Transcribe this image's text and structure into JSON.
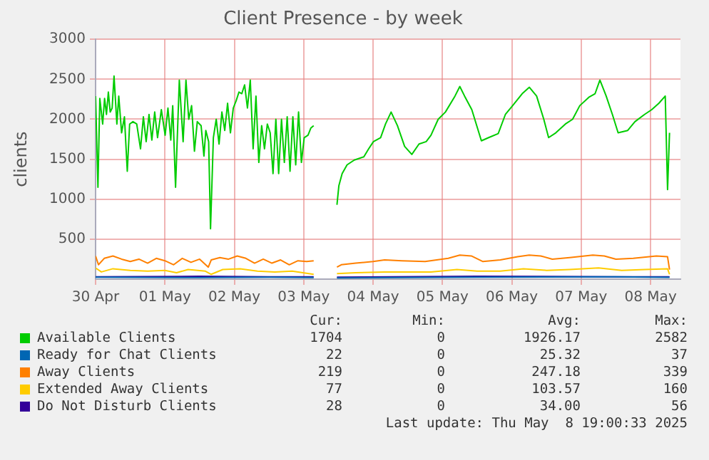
{
  "chart_data": {
    "type": "line",
    "title": "Client Presence - by week",
    "ylabel": "clients",
    "xlim": [
      "2025-04-30T00:00",
      "2025-05-08T10:20"
    ],
    "xticks": [
      {
        "value": "2025-04-30",
        "label": "30 Apr"
      },
      {
        "value": "2025-05-01",
        "label": "01 May"
      },
      {
        "value": "2025-05-02",
        "label": "02 May"
      },
      {
        "value": "2025-05-03",
        "label": "03 May"
      },
      {
        "value": "2025-05-04",
        "label": "04 May"
      },
      {
        "value": "2025-05-05",
        "label": "05 May"
      },
      {
        "value": "2025-05-06",
        "label": "06 May"
      },
      {
        "value": "2025-05-07",
        "label": "07 May"
      },
      {
        "value": "2025-05-08",
        "label": "08 May"
      }
    ],
    "ylim": [
      0,
      3000
    ],
    "yticks": [
      500,
      1000,
      1500,
      2000,
      2500,
      3000
    ],
    "grid": true,
    "legend": "bottom",
    "series": [
      {
        "name": "Available Clients",
        "color": "#00cc00",
        "x": [
          "2025-04-30T00:00",
          "2025-04-30T00:49",
          "2025-04-30T01:28",
          "2025-04-30T02:27",
          "2025-04-30T03:07",
          "2025-04-30T03:46",
          "2025-04-30T04:25",
          "2025-04-30T05:04",
          "2025-04-30T05:44",
          "2025-04-30T06:23",
          "2025-04-30T07:22",
          "2025-04-30T08:01",
          "2025-04-30T09:00",
          "2025-04-30T09:59",
          "2025-04-30T10:58",
          "2025-04-30T11:47",
          "2025-04-30T12:56",
          "2025-04-30T14:14",
          "2025-04-30T15:33",
          "2025-04-30T16:32",
          "2025-04-30T17:30",
          "2025-04-30T18:29",
          "2025-04-30T19:28",
          "2025-04-30T20:27",
          "2025-04-30T21:26",
          "2025-04-30T22:45",
          "2025-05-01T00:04",
          "2025-05-01T01:02",
          "2025-05-01T02:01",
          "2025-05-01T02:41",
          "2025-05-01T03:40",
          "2025-05-01T04:58",
          "2025-05-01T06:17",
          "2025-05-01T07:16",
          "2025-05-01T08:14",
          "2025-05-01T09:13",
          "2025-05-01T10:12",
          "2025-05-01T11:11",
          "2025-05-01T12:30",
          "2025-05-01T13:29",
          "2025-05-01T14:08",
          "2025-05-01T15:07",
          "2025-05-01T15:46",
          "2025-05-01T16:45",
          "2025-05-01T17:44",
          "2025-05-01T18:43",
          "2025-05-01T19:42",
          "2025-05-01T20:41",
          "2025-05-01T21:40",
          "2025-05-01T22:39",
          "2025-05-01T23:38",
          "2025-05-02T00:37",
          "2025-05-02T01:36",
          "2025-05-02T02:35",
          "2025-05-02T03:33",
          "2025-05-02T04:32",
          "2025-05-02T05:31",
          "2025-05-02T06:30",
          "2025-05-02T07:29",
          "2025-05-02T08:28",
          "2025-05-02T09:27",
          "2025-05-02T10:26",
          "2025-05-02T11:25",
          "2025-05-02T12:24",
          "2025-05-02T13:23",
          "2025-05-02T14:22",
          "2025-05-02T15:20",
          "2025-05-02T16:19",
          "2025-05-02T17:18",
          "2025-05-02T18:17",
          "2025-05-02T19:16",
          "2025-05-02T20:15",
          "2025-05-02T21:14",
          "2025-05-02T22:13",
          "2025-05-02T23:12",
          "2025-05-03T00:10",
          "2025-05-03T01:29",
          "2025-05-03T02:28",
          "2025-05-03T03:27",
          "2025-05-03T07:00",
          "2025-05-03T11:30",
          "2025-05-03T12:10",
          "2025-05-03T13:18",
          "2025-05-03T15:00",
          "2025-05-03T17:30",
          "2025-05-03T20:48",
          "2025-05-03T22:28",
          "2025-05-04T00:07",
          "2025-05-04T02:36",
          "2025-05-04T04:18",
          "2025-05-04T06:14",
          "2025-05-04T08:25",
          "2025-05-04T10:55",
          "2025-05-04T13:24",
          "2025-05-04T15:53",
          "2025-05-04T18:22",
          "2025-05-04T20:02",
          "2025-05-04T22:31",
          "2025-05-05T01:01",
          "2025-05-05T04:20",
          "2025-05-05T06:00",
          "2025-05-05T07:39",
          "2025-05-05T10:09",
          "2025-05-05T13:28",
          "2025-05-05T15:58",
          "2025-05-05T19:17",
          "2025-05-05T21:46",
          "2025-05-06T00:16",
          "2025-05-06T03:35",
          "2025-05-06T06:04",
          "2025-05-06T08:34",
          "2025-05-06T11:03",
          "2025-05-06T12:43",
          "2025-05-06T15:12",
          "2025-05-06T18:31",
          "2025-05-06T21:01",
          "2025-05-06T23:30",
          "2025-05-07T02:49",
          "2025-05-07T04:48",
          "2025-05-07T06:28",
          "2025-05-07T08:38",
          "2025-05-07T10:47",
          "2025-05-07T12:46",
          "2025-05-07T16:05",
          "2025-05-07T18:35",
          "2025-05-07T21:54",
          "2025-05-08T00:23",
          "2025-05-08T02:52",
          "2025-05-08T05:04",
          "2025-05-08T05:52",
          "2025-05-08T06:33"
        ],
        "values": [
          2290,
          1150,
          2260,
          1940,
          2260,
          2060,
          2340,
          2090,
          2140,
          2540,
          1940,
          2290,
          1830,
          2030,
          1350,
          1940,
          1970,
          1940,
          1630,
          2030,
          1720,
          2060,
          1740,
          2090,
          1770,
          2120,
          1800,
          2140,
          1740,
          2170,
          1150,
          2490,
          1720,
          2490,
          2000,
          2170,
          1600,
          1970,
          1920,
          1540,
          1860,
          1720,
          630,
          1770,
          2000,
          1690,
          2090,
          1860,
          2200,
          1830,
          2140,
          2230,
          2340,
          2320,
          2430,
          2140,
          2490,
          1630,
          2290,
          1460,
          1920,
          1630,
          1940,
          1830,
          1320,
          2000,
          1320,
          2000,
          1460,
          2030,
          1350,
          2030,
          1430,
          2090,
          1460,
          1770,
          1800,
          1890,
          1920,
          null,
          930,
          1170,
          1320,
          1430,
          1490,
          1530,
          1630,
          1720,
          1770,
          1940,
          2090,
          1920,
          1660,
          1560,
          1690,
          1720,
          1800,
          2000,
          2090,
          2290,
          2410,
          2290,
          2120,
          1730,
          1770,
          1820,
          2060,
          2170,
          2320,
          2400,
          2290,
          2000,
          1770,
          1830,
          1940,
          2000,
          2170,
          2280,
          2320,
          2490,
          2290,
          2060,
          1830,
          1860,
          1970,
          2060,
          2120,
          2200,
          2290,
          1120,
          1830
        ]
      },
      {
        "name": "Ready for Chat Clients",
        "color": "#0066b3",
        "x": [
          "2025-04-30T00:00",
          "2025-05-01T12:00",
          "2025-05-02T12:00",
          "2025-05-03T03:27",
          "2025-05-03T07:00",
          "2025-05-03T11:30",
          "2025-05-05T12:00",
          "2025-05-07T12:00",
          "2025-05-08T06:33"
        ],
        "values": [
          25,
          20,
          25,
          20,
          null,
          15,
          25,
          30,
          22
        ]
      },
      {
        "name": "Away Clients",
        "color": "#ff8000",
        "x": [
          "2025-04-30T00:00",
          "2025-04-30T01:00",
          "2025-04-30T03:00",
          "2025-04-30T06:00",
          "2025-04-30T09:00",
          "2025-04-30T12:00",
          "2025-04-30T15:00",
          "2025-04-30T18:00",
          "2025-04-30T21:00",
          "2025-05-01T00:00",
          "2025-05-01T03:00",
          "2025-05-01T06:00",
          "2025-05-01T09:00",
          "2025-05-01T12:00",
          "2025-05-01T15:00",
          "2025-05-01T16:00",
          "2025-05-01T19:00",
          "2025-05-01T22:00",
          "2025-05-02T01:00",
          "2025-05-02T04:00",
          "2025-05-02T07:00",
          "2025-05-02T10:00",
          "2025-05-02T13:00",
          "2025-05-02T16:00",
          "2025-05-02T19:00",
          "2025-05-02T22:00",
          "2025-05-03T01:00",
          "2025-05-03T03:27",
          "2025-05-03T07:00",
          "2025-05-03T11:30",
          "2025-05-03T13:00",
          "2025-05-03T18:00",
          "2025-05-04T00:00",
          "2025-05-04T04:00",
          "2025-05-04T10:00",
          "2025-05-04T18:00",
          "2025-05-05T02:00",
          "2025-05-05T06:00",
          "2025-05-05T10:00",
          "2025-05-05T14:00",
          "2025-05-05T20:00",
          "2025-05-06T02:00",
          "2025-05-06T06:00",
          "2025-05-06T10:00",
          "2025-05-06T14:00",
          "2025-05-06T20:00",
          "2025-05-07T04:00",
          "2025-05-07T08:00",
          "2025-05-07T12:00",
          "2025-05-07T18:00",
          "2025-05-08T02:00",
          "2025-05-08T05:52",
          "2025-05-08T06:33"
        ],
        "values": [
          290,
          180,
          260,
          290,
          250,
          220,
          250,
          200,
          260,
          230,
          180,
          260,
          210,
          250,
          150,
          240,
          270,
          250,
          290,
          260,
          200,
          250,
          200,
          240,
          180,
          230,
          220,
          230,
          null,
          150,
          180,
          200,
          220,
          240,
          230,
          220,
          260,
          300,
          290,
          220,
          240,
          280,
          300,
          290,
          250,
          270,
          300,
          290,
          250,
          260,
          290,
          280,
          120
        ]
      },
      {
        "name": "Extended Away Clients",
        "color": "#ffcc00",
        "x": [
          "2025-04-30T00:00",
          "2025-04-30T02:00",
          "2025-04-30T06:00",
          "2025-04-30T12:00",
          "2025-04-30T18:00",
          "2025-05-01T00:00",
          "2025-05-01T04:00",
          "2025-05-01T08:00",
          "2025-05-01T14:00",
          "2025-05-01T16:00",
          "2025-05-01T20:00",
          "2025-05-02T02:00",
          "2025-05-02T08:00",
          "2025-05-02T14:00",
          "2025-05-02T20:00",
          "2025-05-03T03:27",
          "2025-05-03T07:00",
          "2025-05-03T11:30",
          "2025-05-03T18:00",
          "2025-05-04T04:00",
          "2025-05-04T12:00",
          "2025-05-04T20:00",
          "2025-05-05T05:00",
          "2025-05-05T12:00",
          "2025-05-05T20:00",
          "2025-05-06T04:00",
          "2025-05-06T12:00",
          "2025-05-06T20:00",
          "2025-05-07T06:00",
          "2025-05-07T14:00",
          "2025-05-07T22:00",
          "2025-05-08T05:52",
          "2025-05-08T06:33"
        ],
        "values": [
          140,
          90,
          130,
          110,
          100,
          110,
          80,
          120,
          100,
          60,
          120,
          130,
          100,
          90,
          100,
          60,
          null,
          70,
          80,
          90,
          90,
          90,
          120,
          100,
          100,
          130,
          110,
          120,
          140,
          110,
          120,
          130,
          60
        ]
      },
      {
        "name": "Do Not Disturb Clients",
        "color": "#330099",
        "x": [
          "2025-04-30T00:00",
          "2025-05-01T12:00",
          "2025-05-02T12:00",
          "2025-05-03T03:27",
          "2025-05-03T07:00",
          "2025-05-03T11:30",
          "2025-05-05T12:00",
          "2025-05-07T12:00",
          "2025-05-08T06:33"
        ],
        "values": [
          30,
          35,
          30,
          28,
          null,
          25,
          35,
          30,
          28
        ]
      }
    ],
    "annotations": [
      "Cur:",
      "Min:",
      "Avg:",
      "Max:",
      "1704",
      "0",
      "1926.17",
      "2582",
      "22",
      "0",
      "25.32",
      "37",
      "219",
      "0",
      "247.18",
      "339",
      "77",
      "0",
      "103.57",
      "160",
      "28",
      "0",
      "34.00",
      "56",
      "Last update: Thu May  8 19:00:33 2025"
    ]
  }
}
